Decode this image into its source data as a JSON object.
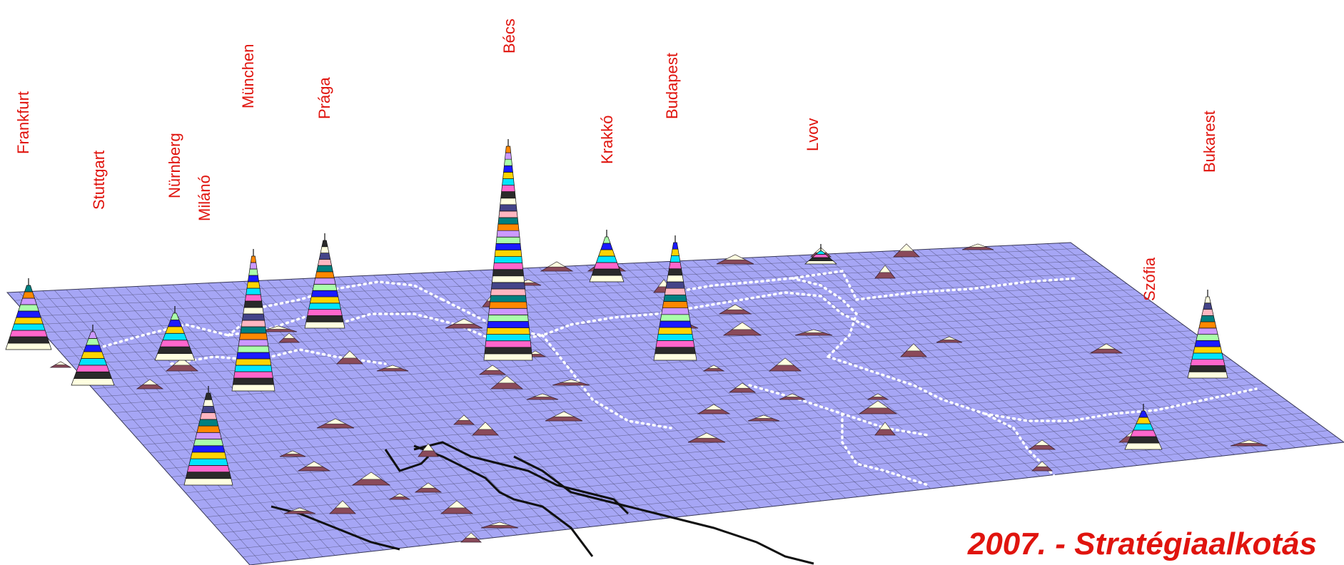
{
  "map": {
    "caption": "2007. - Stratégiaalkotás",
    "colors": {
      "surface": "#a6a6f5",
      "grid": "#3a3a5a",
      "border": "#ffffff",
      "river": "#111111",
      "label": "#e0140e",
      "bump": "#8a4a5a"
    },
    "cities": [
      {
        "key": "frankfurt",
        "name": "Frankfurt",
        "height": 0.3
      },
      {
        "key": "stuttgart",
        "name": "Stuttgart",
        "height": 0.25
      },
      {
        "key": "nurnberg",
        "name": "Nürnberg",
        "height": 0.22
      },
      {
        "key": "milano",
        "name": "Milánó",
        "height": 0.43
      },
      {
        "key": "munchen",
        "name": "München",
        "height": 0.63
      },
      {
        "key": "praga",
        "name": "Prága",
        "height": 0.41
      },
      {
        "key": "becs",
        "name": "Bécs",
        "height": 1.0
      },
      {
        "key": "krakko",
        "name": "Krakkó",
        "height": 0.21
      },
      {
        "key": "budapest",
        "name": "Budapest",
        "height": 0.55
      },
      {
        "key": "lvov",
        "name": "Lvov",
        "height": 0.04
      },
      {
        "key": "szofia",
        "name": "Szófia",
        "height": 0.18
      },
      {
        "key": "bukarest",
        "name": "Bukarest",
        "height": 0.38
      }
    ],
    "band_colors": [
      "#ffffe0",
      "#2a2a2a",
      "#ff66cc",
      "#00e5ff",
      "#ffd400",
      "#1a1aff",
      "#aaffaa",
      "#cc99ff",
      "#ff8800",
      "#008080",
      "#ffb6c1",
      "#444488"
    ]
  }
}
